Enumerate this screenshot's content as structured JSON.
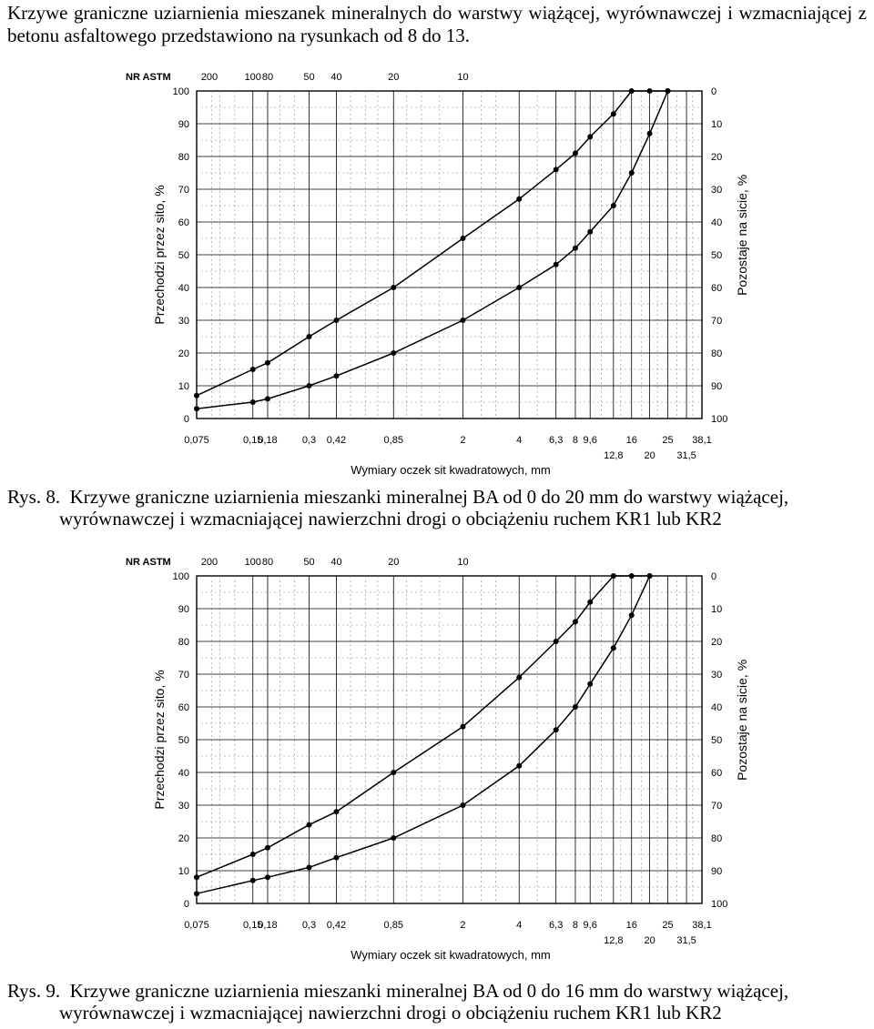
{
  "intro": {
    "line1": "Krzywe graniczne uziarnienia mieszanek mineralnych do warstwy wiążącej, wyrównawczej",
    "line2": "i wzmacniającej z betonu asfaltowego przedstawiono na rysunkach od 8 do 13."
  },
  "figures": [
    {
      "caption_number": "Rys. 8.",
      "caption_line1": "Krzywe graniczne uziarnienia mieszanki mineralnej BA od 0 do 20 mm do warstwy wiążącej,",
      "caption_line2": "wyrównawczej i wzmacniającej nawierzchni drogi o obciążeniu ruchem KR1 lub KR2"
    },
    {
      "caption_number": "Rys. 9.",
      "caption_line1": "Krzywe graniczne uziarnienia mieszanki mineralnej BA od 0 do 16 mm do warstwy wiążącej,",
      "caption_line2": "wyrównawczej i wzmacniającej nawierzchni drogi o obciążeniu ruchem KR1 lub KR2"
    }
  ],
  "chart_data": [
    {
      "type": "line",
      "x_scale": "log",
      "grid": true,
      "xlabel": "Wymiary oczek sit kwadratowych, mm",
      "ylabel": "Przechodzi przez sito, %",
      "ylabel_right": "Pozostaje na sicie, %",
      "top_axis_label": "NR ASTM",
      "top_ticks": [
        {
          "label": "200",
          "x": 0.075
        },
        {
          "label": "100",
          "x": 0.15
        },
        {
          "label": "80",
          "x": 0.18
        },
        {
          "label": "50",
          "x": 0.3
        },
        {
          "label": "40",
          "x": 0.42
        },
        {
          "label": "20",
          "x": 0.85
        },
        {
          "label": "10",
          "x": 2
        }
      ],
      "x_ticks_row1": [
        "0,075",
        "0,15",
        "0,18",
        "0,3",
        "0,42",
        "0,85",
        "2",
        "4",
        "6,3",
        "8",
        "9,6",
        "16",
        "25",
        "38,1"
      ],
      "x_ticks_row1_values": [
        0.075,
        0.15,
        0.18,
        0.3,
        0.42,
        0.85,
        2,
        4,
        6.3,
        8,
        9.6,
        16,
        25,
        38.1
      ],
      "x_ticks_row2": [
        "12,8",
        "20",
        "31,5"
      ],
      "x_ticks_row2_values": [
        12.8,
        20,
        31.5
      ],
      "y_left_ticks": [
        "0",
        "10",
        "20",
        "30",
        "40",
        "50",
        "60",
        "70",
        "80",
        "90",
        "100"
      ],
      "y_right_ticks": [
        "100",
        "90",
        "80",
        "70",
        "60",
        "50",
        "40",
        "30",
        "20",
        "10",
        "0"
      ],
      "ylim": [
        0,
        100
      ],
      "series": [
        {
          "x": [
            0.075,
            0.15,
            0.18,
            0.3,
            0.42,
            0.85,
            2,
            4,
            6.3,
            8,
            9.6,
            12.8,
            16,
            20,
            25
          ],
          "values": [
            7,
            15,
            17,
            25,
            30,
            40,
            55,
            67,
            76,
            81,
            86,
            93,
            100,
            100,
            100
          ]
        },
        {
          "x": [
            0.075,
            0.15,
            0.18,
            0.3,
            0.42,
            0.85,
            2,
            4,
            6.3,
            8,
            9.6,
            12.8,
            16,
            20,
            25
          ],
          "values": [
            3,
            5,
            6,
            10,
            13,
            20,
            30,
            40,
            47,
            52,
            57,
            65,
            75,
            87,
            100
          ]
        }
      ]
    },
    {
      "type": "line",
      "x_scale": "log",
      "grid": true,
      "xlabel": "Wymiary oczek sit kwadratowych, mm",
      "ylabel": "Przechodzi przez sito, %",
      "ylabel_right": "Pozostaje na sicie, %",
      "top_axis_label": "NR ASTM",
      "top_ticks": [
        {
          "label": "200",
          "x": 0.075
        },
        {
          "label": "100",
          "x": 0.15
        },
        {
          "label": "80",
          "x": 0.18
        },
        {
          "label": "50",
          "x": 0.3
        },
        {
          "label": "40",
          "x": 0.42
        },
        {
          "label": "20",
          "x": 0.85
        },
        {
          "label": "10",
          "x": 2
        }
      ],
      "x_ticks_row1": [
        "0,075",
        "0,15",
        "0,18",
        "0,3",
        "0,42",
        "0,85",
        "2",
        "4",
        "6,3",
        "8",
        "9,6",
        "16",
        "25",
        "38,1"
      ],
      "x_ticks_row1_values": [
        0.075,
        0.15,
        0.18,
        0.3,
        0.42,
        0.85,
        2,
        4,
        6.3,
        8,
        9.6,
        16,
        25,
        38.1
      ],
      "x_ticks_row2": [
        "12,8",
        "20",
        "31,5"
      ],
      "x_ticks_row2_values": [
        12.8,
        20,
        31.5
      ],
      "y_left_ticks": [
        "0",
        "10",
        "20",
        "30",
        "40",
        "50",
        "60",
        "70",
        "80",
        "90",
        "100"
      ],
      "y_right_ticks": [
        "100",
        "90",
        "80",
        "70",
        "60",
        "50",
        "40",
        "30",
        "20",
        "10",
        "0"
      ],
      "ylim": [
        0,
        100
      ],
      "series": [
        {
          "x": [
            0.075,
            0.15,
            0.18,
            0.3,
            0.42,
            0.85,
            2,
            4,
            6.3,
            8,
            9.6,
            12.8,
            16,
            20
          ],
          "values": [
            8,
            15,
            17,
            24,
            28,
            40,
            54,
            69,
            80,
            86,
            92,
            100,
            100,
            100
          ]
        },
        {
          "x": [
            0.075,
            0.15,
            0.18,
            0.3,
            0.42,
            0.85,
            2,
            4,
            6.3,
            8,
            9.6,
            12.8,
            16,
            20
          ],
          "values": [
            3,
            7,
            8,
            11,
            14,
            20,
            30,
            42,
            53,
            60,
            67,
            78,
            88,
            100
          ]
        }
      ]
    }
  ]
}
